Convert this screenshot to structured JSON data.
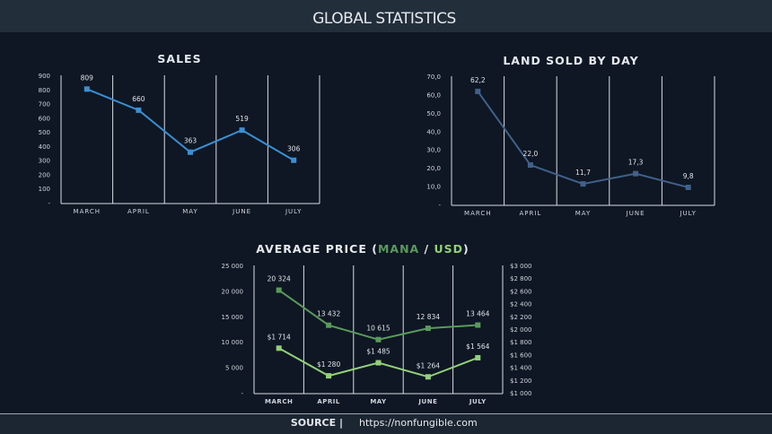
{
  "header": {
    "title": "GLOBAL STATISTICS"
  },
  "footer": {
    "label": "SOURCE |",
    "url": "https://nonfungible.com"
  },
  "chart_data": [
    {
      "type": "line",
      "title": "SALES",
      "categories": [
        "MARCH",
        "APRIL",
        "MAY",
        "JUNE",
        "JULY"
      ],
      "values": [
        809,
        660,
        363,
        519,
        306
      ],
      "color": "#3b8fd4",
      "ylim": [
        0,
        900
      ],
      "yticks": [
        {
          "value": 0,
          "label": "-"
        },
        100,
        200,
        300,
        400,
        500,
        600,
        700,
        800,
        900
      ]
    },
    {
      "type": "line",
      "title": "LAND SOLD BY DAY",
      "categories": [
        "MARCH",
        "APRIL",
        "MAY",
        "JUNE",
        "JULY"
      ],
      "values": [
        62.2,
        22.0,
        11.7,
        17.3,
        9.8
      ],
      "value_labels": [
        "62,2",
        "22,0",
        "11,7",
        "17,3",
        "9,8"
      ],
      "color": "#40618a",
      "ylim": [
        0,
        70
      ],
      "yticks": [
        {
          "value": 0,
          "label": "-"
        },
        {
          "value": 10,
          "label": "10,0"
        },
        {
          "value": 20,
          "label": "20,0"
        },
        {
          "value": 30,
          "label": "30,0"
        },
        {
          "value": 40,
          "label": "40,0"
        },
        {
          "value": 50,
          "label": "50,0"
        },
        {
          "value": 60,
          "label": "60,0"
        },
        {
          "value": 70,
          "label": "70,0"
        }
      ]
    },
    {
      "type": "line",
      "title": "AVERAGE PRICE (",
      "title_separator": " / ",
      "title_suffix": ")",
      "categories": [
        "MARCH",
        "APRIL",
        "MAY",
        "JUNE",
        "JULY"
      ],
      "series": [
        {
          "name": "MANA",
          "color": "#5a9a5c",
          "values": [
            20324,
            13432,
            10615,
            12834,
            13464
          ],
          "value_labels": [
            "20 324",
            "13 432",
            "10 615",
            "12 834",
            "13 464"
          ]
        },
        {
          "name": "USD",
          "color": "#93d07a",
          "axis": "y2",
          "values": [
            1714,
            1280,
            1485,
            1264,
            1564
          ],
          "value_labels": [
            "$1 714",
            "$1 280",
            "$1 485",
            "$1 264",
            "$1 564"
          ]
        }
      ],
      "ylim": [
        0,
        25000
      ],
      "yticks": [
        {
          "value": 0,
          "label": "-"
        },
        {
          "value": 5000,
          "label": "5 000"
        },
        {
          "value": 10000,
          "label": "10 000"
        },
        {
          "value": 15000,
          "label": "15 000"
        },
        {
          "value": 20000,
          "label": "20 000"
        },
        {
          "value": 25000,
          "label": "25 000"
        }
      ],
      "y2lim": [
        1000,
        3000
      ],
      "y2ticks": [
        {
          "value": 1000,
          "label": "$1 000"
        },
        {
          "value": 1200,
          "label": "$1 200"
        },
        {
          "value": 1400,
          "label": "$1 400"
        },
        {
          "value": 1600,
          "label": "$1 600"
        },
        {
          "value": 1800,
          "label": "$1 800"
        },
        {
          "value": 2000,
          "label": "$2 000"
        },
        {
          "value": 2200,
          "label": "$2 200"
        },
        {
          "value": 2400,
          "label": "$2 400"
        },
        {
          "value": 2600,
          "label": "$2 600"
        },
        {
          "value": 2800,
          "label": "$2 800"
        },
        {
          "value": 3000,
          "label": "$3 000"
        }
      ]
    }
  ]
}
